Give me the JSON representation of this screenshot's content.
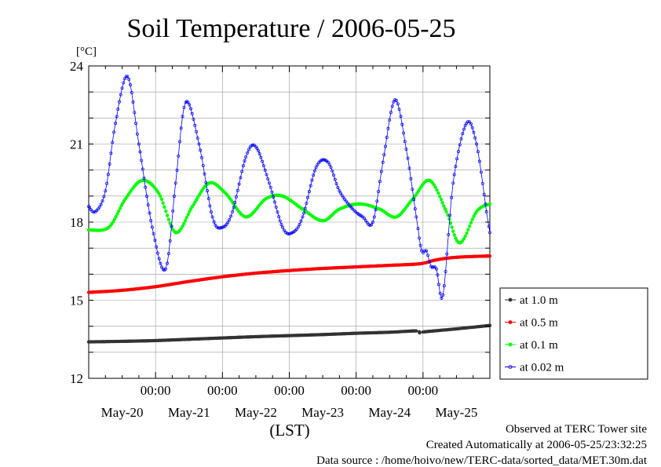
{
  "chart_data": {
    "type": "line",
    "title": "Soil Temperature / 2006-05-25",
    "ylabel": "[°C]",
    "xlabel": "(LST)",
    "ylim": [
      12,
      24
    ],
    "yticks": [
      12,
      15,
      18,
      21,
      24
    ],
    "xlim_days": [
      0,
      6.0
    ],
    "time_ticks": [
      {
        "x": 1.0,
        "label": "00:00"
      },
      {
        "x": 2.0,
        "label": "00:00"
      },
      {
        "x": 3.0,
        "label": "00:00"
      },
      {
        "x": 4.0,
        "label": "00:00"
      },
      {
        "x": 5.0,
        "label": "00:00"
      }
    ],
    "date_labels": [
      {
        "x": 0.5,
        "label": "May-20"
      },
      {
        "x": 1.5,
        "label": "May-21"
      },
      {
        "x": 2.5,
        "label": "May-22"
      },
      {
        "x": 3.5,
        "label": "May-23"
      },
      {
        "x": 4.5,
        "label": "May-24"
      },
      {
        "x": 5.5,
        "label": "May-25"
      }
    ],
    "grid": true,
    "legend_position": "right",
    "series": [
      {
        "name": "at 1.0 m",
        "color": "#333333",
        "x": [
          0,
          0.5,
          1.0,
          1.5,
          2.0,
          2.5,
          3.0,
          3.5,
          4.0,
          4.5,
          4.9,
          4.95,
          5.0,
          5.5,
          6.0
        ],
        "y": [
          13.4,
          13.42,
          13.45,
          13.5,
          13.55,
          13.6,
          13.64,
          13.68,
          13.73,
          13.77,
          13.82,
          13.75,
          13.78,
          13.9,
          14.03
        ]
      },
      {
        "name": "at 0.5 m",
        "color": "#ff0000",
        "x": [
          0,
          0.5,
          1.0,
          1.5,
          2.0,
          2.5,
          3.0,
          3.5,
          4.0,
          4.5,
          4.95,
          5.2,
          5.5,
          6.0
        ],
        "y": [
          15.3,
          15.38,
          15.52,
          15.72,
          15.9,
          16.04,
          16.14,
          16.22,
          16.28,
          16.34,
          16.4,
          16.55,
          16.65,
          16.7
        ]
      },
      {
        "name": "at 0.1 m",
        "color": "#00ff00",
        "x": [
          0,
          0.3,
          0.55,
          0.8,
          1.05,
          1.3,
          1.55,
          1.8,
          2.05,
          2.35,
          2.65,
          2.9,
          3.2,
          3.5,
          3.75,
          4.05,
          4.35,
          4.6,
          4.85,
          5.1,
          5.35,
          5.55,
          5.8,
          6.0
        ],
        "y": [
          17.7,
          17.8,
          18.9,
          19.6,
          19.1,
          17.6,
          18.6,
          19.5,
          19.1,
          18.2,
          18.9,
          19.0,
          18.5,
          18.05,
          18.5,
          18.7,
          18.5,
          18.2,
          18.9,
          19.6,
          18.4,
          17.2,
          18.4,
          18.7
        ]
      },
      {
        "name": "at 0.02 m",
        "color": "#0000ff",
        "x": [
          0,
          0.1,
          0.25,
          0.4,
          0.58,
          0.75,
          0.95,
          1.15,
          1.3,
          1.45,
          1.65,
          1.85,
          2.0,
          2.15,
          2.35,
          2.5,
          2.7,
          2.9,
          3.05,
          3.2,
          3.4,
          3.58,
          3.75,
          3.95,
          4.1,
          4.25,
          4.4,
          4.58,
          4.75,
          4.9,
          4.98,
          5.05,
          5.12,
          5.2,
          5.3,
          5.45,
          5.65,
          5.8,
          5.95,
          6.0
        ],
        "y": [
          18.6,
          18.4,
          19.2,
          21.8,
          23.6,
          21.0,
          17.8,
          16.2,
          19.5,
          22.6,
          21.0,
          18.2,
          17.8,
          18.4,
          20.5,
          20.9,
          19.5,
          17.8,
          17.6,
          18.2,
          20.1,
          20.3,
          19.2,
          18.5,
          18.2,
          18.0,
          20.3,
          22.7,
          20.8,
          18.2,
          16.9,
          16.9,
          16.3,
          16.2,
          15.2,
          19.5,
          21.8,
          21.0,
          18.4,
          17.6
        ]
      }
    ]
  },
  "footer": {
    "line1": "Observed at TERC Tower site",
    "line2": "Created Automatically at 2006-05-25/23:32:25",
    "line3": "Data source : /home/hoivo/new/TERC-data/sorted_data/MET.30m.dat"
  }
}
